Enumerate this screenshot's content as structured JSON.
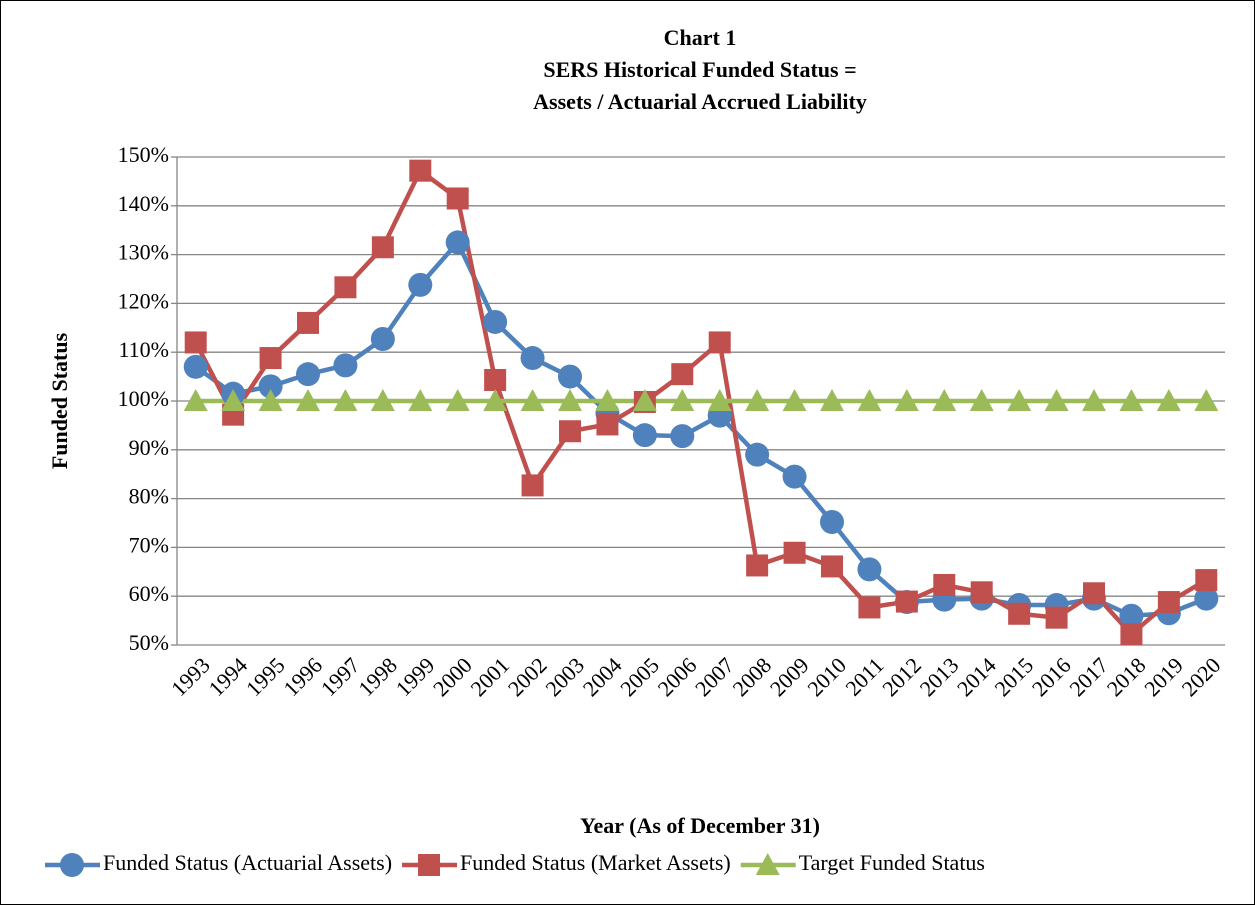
{
  "chart_data": {
    "type": "line",
    "title": [
      "Chart 1",
      "SERS Historical Funded Status =",
      "Assets / Actuarial Accrued Liability"
    ],
    "x_label": "Year (As of December 31)",
    "y_label": "Funded Status",
    "categories": [
      "1993",
      "1994",
      "1995",
      "1996",
      "1997",
      "1998",
      "1999",
      "2000",
      "2001",
      "2002",
      "2003",
      "2004",
      "2005",
      "2006",
      "2007",
      "2008",
      "2009",
      "2010",
      "2011",
      "2012",
      "2013",
      "2014",
      "2015",
      "2016",
      "2017",
      "2018",
      "2019",
      "2020"
    ],
    "series": [
      {
        "name": "Funded Status (Actuarial Assets)",
        "color": "#4f81bd",
        "marker": "circle",
        "values": [
          107,
          101.5,
          103,
          105.5,
          107.3,
          112.7,
          123.8,
          132.5,
          116.2,
          108.8,
          105,
          97.5,
          93,
          92.8,
          97,
          89,
          84.5,
          75.2,
          65.5,
          58.8,
          59.3,
          59.5,
          58.2,
          58.2,
          59.5,
          56,
          56.5,
          59.5
        ]
      },
      {
        "name": "Funded Status (Market Assets)",
        "color": "#c0504d",
        "marker": "square",
        "values": [
          112,
          97.2,
          108.8,
          116,
          123.3,
          131.5,
          147.2,
          141.5,
          104.3,
          82.7,
          93.8,
          95.2,
          99.8,
          105.5,
          112,
          66.3,
          68.9,
          66.1,
          57.7,
          58.9,
          62.3,
          60.8,
          56.4,
          55.6,
          60.6,
          52.2,
          58.8,
          63.3
        ]
      },
      {
        "name": "Target Funded Status",
        "color": "#9bbb59",
        "marker": "triangle",
        "values": [
          100,
          100,
          100,
          100,
          100,
          100,
          100,
          100,
          100,
          100,
          100,
          100,
          100,
          100,
          100,
          100,
          100,
          100,
          100,
          100,
          100,
          100,
          100,
          100,
          100,
          100,
          100,
          100
        ]
      }
    ],
    "ylim": [
      50,
      150
    ],
    "yticks": [
      {
        "value": 50,
        "label": "50%"
      },
      {
        "value": 60,
        "label": "60%"
      },
      {
        "value": 70,
        "label": "70%"
      },
      {
        "value": 80,
        "label": "80%"
      },
      {
        "value": 90,
        "label": "90%"
      },
      {
        "value": 100,
        "label": "100%"
      },
      {
        "value": 110,
        "label": "110%"
      },
      {
        "value": 120,
        "label": "120%"
      },
      {
        "value": 130,
        "label": "130%"
      },
      {
        "value": 140,
        "label": "140%"
      },
      {
        "value": 150,
        "label": "150%"
      }
    ],
    "grid": true,
    "legend": "bottom"
  }
}
